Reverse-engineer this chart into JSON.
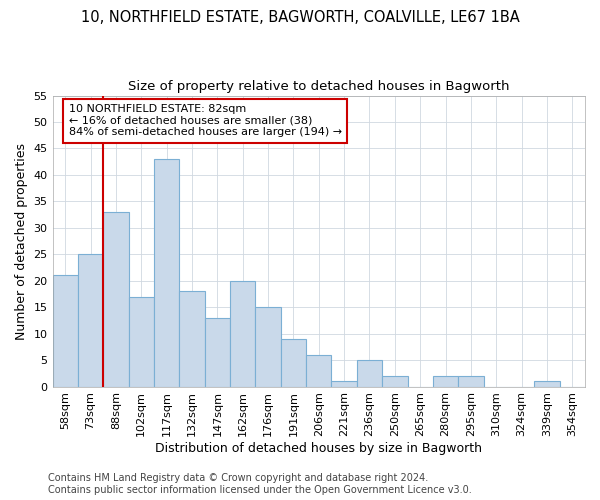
{
  "title1": "10, NORTHFIELD ESTATE, BAGWORTH, COALVILLE, LE67 1BA",
  "title2": "Size of property relative to detached houses in Bagworth",
  "xlabel": "Distribution of detached houses by size in Bagworth",
  "ylabel": "Number of detached properties",
  "categories": [
    "58sqm",
    "73sqm",
    "88sqm",
    "102sqm",
    "117sqm",
    "132sqm",
    "147sqm",
    "162sqm",
    "176sqm",
    "191sqm",
    "206sqm",
    "221sqm",
    "236sqm",
    "250sqm",
    "265sqm",
    "280sqm",
    "295sqm",
    "310sqm",
    "324sqm",
    "339sqm",
    "354sqm"
  ],
  "values": [
    21,
    25,
    33,
    17,
    43,
    18,
    13,
    20,
    15,
    9,
    6,
    1,
    5,
    2,
    0,
    2,
    2,
    0,
    0,
    1,
    0
  ],
  "bar_color": "#c9d9ea",
  "bar_edge_color": "#7bafd4",
  "vline_color": "#cc0000",
  "vline_x_index": 2,
  "annotation_title": "10 NORTHFIELD ESTATE: 82sqm",
  "annotation_line1": "← 16% of detached houses are smaller (38)",
  "annotation_line2": "84% of semi-detached houses are larger (194) →",
  "annotation_box_facecolor": "#ffffff",
  "annotation_box_edgecolor": "#cc0000",
  "ylim": [
    0,
    55
  ],
  "yticks": [
    0,
    5,
    10,
    15,
    20,
    25,
    30,
    35,
    40,
    45,
    50,
    55
  ],
  "title_fontsize": 10.5,
  "subtitle_fontsize": 9.5,
  "ylabel_fontsize": 9,
  "xlabel_fontsize": 9,
  "tick_fontsize": 8,
  "annot_fontsize": 8,
  "footer_fontsize": 7,
  "footer1": "Contains HM Land Registry data © Crown copyright and database right 2024.",
  "footer2": "Contains public sector information licensed under the Open Government Licence v3.0.",
  "background_color": "#ffffff",
  "plot_bg_color": "#ffffff",
  "grid_color": "#d0d8e0"
}
